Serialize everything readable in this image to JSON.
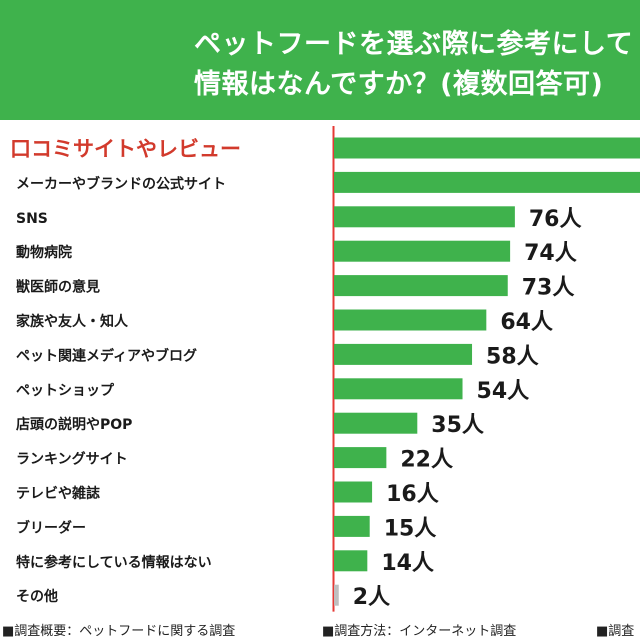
{
  "header": {
    "title_line1": "ペットフードを選ぶ際に参考にして",
    "title_line2": "情報はなんですか？(複数回答可)"
  },
  "footer": {
    "note1": "■調査概要：ペットフードに関する調査",
    "note2": "■調査方法：インターネット調査",
    "note3": "■調査"
  },
  "colors": {
    "header_bg": "#3fb24c",
    "bar": "#3fb24c",
    "highlight_label": "#d23a2c",
    "other_bar": "#bfbfbf",
    "axis": "#e53935"
  },
  "chart_data": {
    "type": "bar",
    "orientation": "horizontal",
    "unit": "人",
    "categories": [
      "口コミサイトやレビュー",
      "メーカーやブランドの公式サイト",
      "SNS",
      "動物病院",
      "獣医師の意見",
      "家族や友人・知人",
      "ペット関連メディアやブログ",
      "ペットショップ",
      "店頭の説明やPOP",
      "ランキングサイト",
      "テレビや雑誌",
      "ブリーダー",
      "特に参考にしている情報はない",
      "その他"
    ],
    "values": [
      null,
      null,
      76,
      74,
      73,
      64,
      58,
      54,
      35,
      22,
      16,
      15,
      14,
      2
    ],
    "value_labels": [
      "",
      "",
      "76人",
      "74人",
      "73人",
      "64人",
      "58人",
      "54人",
      "35人",
      "22人",
      "16人",
      "15人",
      "14人",
      "2人"
    ],
    "highlight_index": 0
  }
}
